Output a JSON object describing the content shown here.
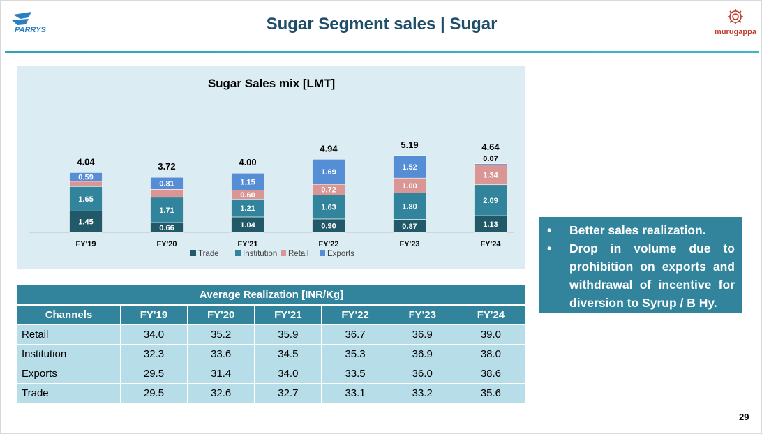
{
  "header": {
    "title": "Sugar Segment sales | Sugar",
    "logo_left": "PARRYS",
    "logo_right": "murugappa"
  },
  "chart_data": {
    "type": "bar",
    "stacked": true,
    "title": "Sugar Sales mix [LMT]",
    "categories": [
      "FY'19",
      "FY'20",
      "FY'21",
      "FY'22",
      "FY'23",
      "FY'24"
    ],
    "series": [
      {
        "name": "Trade",
        "color": "#215968",
        "values": [
          1.45,
          0.66,
          1.04,
          0.9,
          0.87,
          1.13
        ]
      },
      {
        "name": "Institution",
        "color": "#31849b",
        "values": [
          1.65,
          1.71,
          1.21,
          1.63,
          1.8,
          2.09
        ]
      },
      {
        "name": "Retail",
        "color": "#da9694",
        "values": [
          0.35,
          0.54,
          0.6,
          0.72,
          1.0,
          1.34
        ]
      },
      {
        "name": "Exports",
        "color": "#558ed5",
        "values": [
          0.59,
          0.81,
          1.15,
          1.69,
          1.52,
          0.07
        ]
      }
    ],
    "totals": [
      "4.04",
      "3.72",
      "4.00",
      "4.94",
      "5.19",
      "4.64"
    ],
    "legend_position": "bottom",
    "grid": false
  },
  "table": {
    "title": "Average Realization [INR/Kg]",
    "columns": [
      "Channels",
      "FY'19",
      "FY'20",
      "FY'21",
      "FY'22",
      "FY'23",
      "FY'24"
    ],
    "rows": [
      [
        "Retail",
        "34.0",
        "35.2",
        "35.9",
        "36.7",
        "36.9",
        "39.0"
      ],
      [
        "Institution",
        "32.3",
        "33.6",
        "34.5",
        "35.3",
        "36.9",
        "38.0"
      ],
      [
        "Exports",
        "29.5",
        "31.4",
        "34.0",
        "33.5",
        "36.0",
        "38.6"
      ],
      [
        "Trade",
        "29.5",
        "32.6",
        "32.7",
        "33.1",
        "33.2",
        "35.6"
      ]
    ]
  },
  "notes": {
    "bullet": "•",
    "items": [
      "Better sales realization.",
      "Drop in volume due to prohibition on exports and withdrawal of incentive for diversion to Syrup / B Hy."
    ]
  },
  "page_number": "29"
}
